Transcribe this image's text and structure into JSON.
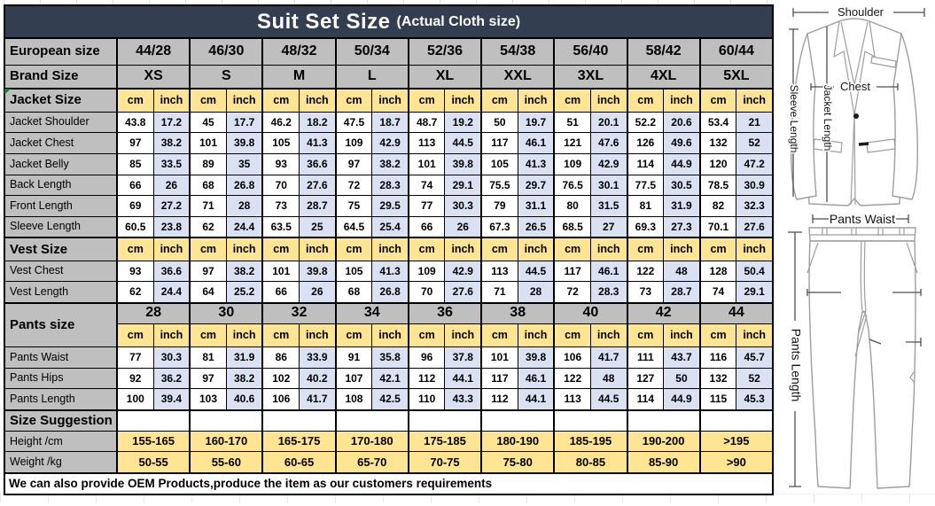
{
  "title": {
    "main": "Suit Set Size",
    "sub": "(Actual Cloth size)"
  },
  "colors": {
    "title_bg": "#333F50",
    "header_gray": "#BFBFBF",
    "unit_gold": "#FFE493",
    "inch_blue": "#D9E1F2",
    "border": "#000000"
  },
  "table": {
    "european": {
      "label": "European size",
      "sizes": [
        "44/28",
        "46/30",
        "48/32",
        "50/34",
        "52/36",
        "54/38",
        "56/40",
        "58/42",
        "60/44"
      ]
    },
    "brand": {
      "label": "Brand Size",
      "sizes": [
        "XS",
        "S",
        "M",
        "L",
        "XL",
        "XXL",
        "3XL",
        "4XL",
        "5XL"
      ]
    },
    "units": {
      "cm": "cm",
      "inch": "inch"
    },
    "jacket": {
      "label": "Jacket Size",
      "rows": [
        {
          "label": "Jacket Shoulder",
          "cm": [
            "43.8",
            "45",
            "46.2",
            "47.5",
            "48.7",
            "50",
            "51",
            "52.2",
            "53.4"
          ],
          "inch": [
            "17.2",
            "17.7",
            "18.2",
            "18.7",
            "19.2",
            "19.7",
            "20.1",
            "20.6",
            "21"
          ]
        },
        {
          "label": "Jacket Chest",
          "cm": [
            "97",
            "101",
            "105",
            "109",
            "113",
            "117",
            "121",
            "126",
            "132"
          ],
          "inch": [
            "38.2",
            "39.8",
            "41.3",
            "42.9",
            "44.5",
            "46.1",
            "47.6",
            "49.6",
            "52"
          ]
        },
        {
          "label": "Jacket Belly",
          "cm": [
            "85",
            "89",
            "93",
            "97",
            "101",
            "105",
            "109",
            "114",
            "120"
          ],
          "inch": [
            "33.5",
            "35",
            "36.6",
            "38.2",
            "39.8",
            "41.3",
            "42.9",
            "44.9",
            "47.2"
          ]
        },
        {
          "label": "Back Length",
          "cm": [
            "66",
            "68",
            "70",
            "72",
            "74",
            "75.5",
            "76.5",
            "77.5",
            "78.5"
          ],
          "inch": [
            "26",
            "26.8",
            "27.6",
            "28.3",
            "29.1",
            "29.7",
            "30.1",
            "30.5",
            "30.9"
          ]
        },
        {
          "label": "Front Length",
          "cm": [
            "69",
            "71",
            "73",
            "75",
            "77",
            "79",
            "80",
            "81",
            "82"
          ],
          "inch": [
            "27.2",
            "28",
            "28.7",
            "29.5",
            "30.3",
            "31.1",
            "31.5",
            "31.9",
            "32.3"
          ]
        },
        {
          "label": "Sleeve Length",
          "cm": [
            "60.5",
            "62",
            "63.5",
            "64.5",
            "66",
            "67.3",
            "68.5",
            "69.3",
            "70.1"
          ],
          "inch": [
            "23.8",
            "24.4",
            "25",
            "25.4",
            "26",
            "26.5",
            "27",
            "27.3",
            "27.6"
          ]
        }
      ]
    },
    "vest": {
      "label": "Vest Size",
      "rows": [
        {
          "label": "Vest Chest",
          "cm": [
            "93",
            "97",
            "101",
            "105",
            "109",
            "113",
            "117",
            "122",
            "128"
          ],
          "inch": [
            "36.6",
            "38.2",
            "39.8",
            "41.3",
            "42.9",
            "44.5",
            "46.1",
            "48",
            "50.4"
          ]
        },
        {
          "label": "Vest Length",
          "cm": [
            "62",
            "64",
            "66",
            "68",
            "70",
            "71",
            "72",
            "73",
            "74"
          ],
          "inch": [
            "24.4",
            "25.2",
            "26",
            "26.8",
            "27.6",
            "28",
            "28.3",
            "28.7",
            "29.1"
          ]
        }
      ]
    },
    "pants": {
      "label": "Pants size",
      "sizes": [
        "28",
        "30",
        "32",
        "34",
        "36",
        "38",
        "40",
        "42",
        "44"
      ],
      "rows": [
        {
          "label": "Pants Waist",
          "cm": [
            "77",
            "81",
            "86",
            "91",
            "96",
            "101",
            "106",
            "111",
            "116"
          ],
          "inch": [
            "30.3",
            "31.9",
            "33.9",
            "35.8",
            "37.8",
            "39.8",
            "41.7",
            "43.7",
            "45.7"
          ]
        },
        {
          "label": "Pants Hips",
          "cm": [
            "92",
            "97",
            "102",
            "107",
            "112",
            "117",
            "122",
            "127",
            "132"
          ],
          "inch": [
            "36.2",
            "38.2",
            "40.2",
            "42.1",
            "44.1",
            "46.1",
            "48",
            "50",
            "52"
          ]
        },
        {
          "label": "Pants Length",
          "cm": [
            "100",
            "103",
            "106",
            "108",
            "110",
            "112",
            "113",
            "114",
            "115"
          ],
          "inch": [
            "39.4",
            "40.6",
            "41.7",
            "42.5",
            "43.3",
            "44.1",
            "44.5",
            "44.9",
            "45.3"
          ]
        }
      ]
    },
    "suggestion": {
      "label": "Size Suggestion",
      "rows": [
        {
          "label": "Height /cm",
          "values": [
            "155-165",
            "160-170",
            "165-175",
            "170-180",
            "175-185",
            "180-190",
            "185-195",
            "190-200",
            ">195"
          ]
        },
        {
          "label": "Weight /kg",
          "values": [
            "50-55",
            "55-60",
            "60-65",
            "65-70",
            "70-75",
            "75-80",
            "80-85",
            "85-90",
            ">90"
          ]
        }
      ]
    },
    "note": "We can also provide OEM Products,produce the item as our customers requirements"
  },
  "diagram": {
    "labels": {
      "shoulder": "Shoulder",
      "chest": "Chest",
      "jacket_length": "Jacket Length",
      "sleeve_length": "Sleeve Length",
      "pants_waist": "Pants Waist",
      "pants_length": "Pants Length"
    }
  }
}
